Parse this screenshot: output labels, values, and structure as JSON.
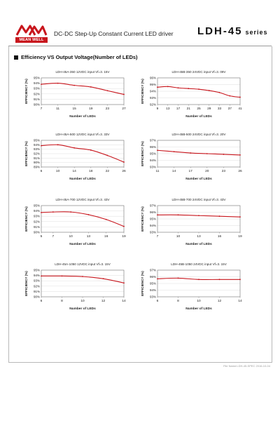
{
  "header": {
    "brand": "MEAN WELL",
    "subtitle": "DC-DC Step-Up Constant Current LED driver",
    "model": "LDH-45",
    "model_suffix": "series"
  },
  "section": {
    "title": "Efficiency VS Output Voltage(Number of LEDs)"
  },
  "footer": {
    "note": "File Name:LDH-45-SPEC   2016-10-04"
  },
  "colors": {
    "curve": "#c8161d",
    "plot_border": "#6e6e6e",
    "grid": "#d5d5d5",
    "text": "#222222"
  },
  "chart_data": [
    {
      "type": "line",
      "title": "LDH-45A-350  12VDC  input  Vf=3. 15V",
      "xlabel": "Number of LEDs",
      "ylabel": "EFFICIENCY (%)",
      "xticks": [
        7,
        11,
        15,
        19,
        23,
        27
      ],
      "yticks": [
        90,
        91,
        92,
        93,
        94,
        95
      ],
      "ylim": [
        90,
        95
      ],
      "x": [
        7,
        11,
        15,
        19,
        23,
        27
      ],
      "y": [
        93.8,
        94.0,
        93.6,
        93.3,
        92.6,
        91.9
      ]
    },
    {
      "type": "line",
      "title": "LDH-45B-350  24VDC  input  Vf=3. 09V",
      "xlabel": "Number of LEDs",
      "ylabel": "EFFICIENCY (%)",
      "xticks": [
        9,
        13,
        17,
        21,
        25,
        29,
        33,
        37,
        41
      ],
      "yticks": [
        92,
        93,
        94,
        95,
        96
      ],
      "ylim": [
        92,
        96
      ],
      "x": [
        9,
        13,
        17,
        21,
        25,
        29,
        33,
        37,
        41
      ],
      "y": [
        94.6,
        94.7,
        94.5,
        94.4,
        94.3,
        94.1,
        93.8,
        93.3,
        93.1
      ]
    },
    {
      "type": "line",
      "title": "LDH-45A-500 12VDC  input  Vf=3. 33V",
      "xlabel": "Number of LEDs",
      "ylabel": "EFFICIENCY (%)",
      "xticks": [
        6,
        10,
        14,
        18,
        22,
        26
      ],
      "yticks": [
        89,
        90,
        91,
        92,
        93,
        94,
        95
      ],
      "ylim": [
        89,
        95
      ],
      "x": [
        6,
        10,
        14,
        18,
        22,
        26
      ],
      "y": [
        93.8,
        94.0,
        93.3,
        92.8,
        91.6,
        90.1
      ]
    },
    {
      "type": "line",
      "title": "LDH-45B-500  24VDC  input  Vf=3. 20V",
      "xlabel": "Number of LEDs",
      "ylabel": "EFFICIENCY (%)",
      "xticks": [
        11,
        14,
        17,
        20,
        23,
        26
      ],
      "yticks": [
        93,
        94,
        95,
        96,
        97
      ],
      "ylim": [
        93,
        97
      ],
      "x": [
        11,
        14,
        17,
        20,
        23,
        26
      ],
      "y": [
        95.5,
        95.3,
        95.1,
        95.0,
        94.9,
        94.8
      ]
    },
    {
      "type": "line",
      "title": "LDH-45A-700 12VDC  input  Vf=3. 43V",
      "xlabel": "Number of LEDs",
      "ylabel": "EFFICIENCY (%)",
      "xticks": [
        5,
        7,
        10,
        13,
        16,
        19
      ],
      "yticks": [
        90,
        91,
        92,
        93,
        94,
        95
      ],
      "ylim": [
        90,
        95
      ],
      "x": [
        5,
        7,
        10,
        13,
        16,
        19
      ],
      "y": [
        93.7,
        93.8,
        93.8,
        93.3,
        92.4,
        91.1
      ]
    },
    {
      "type": "line",
      "title": "LDH-45B-700  24VDC  input  Vf=3. 43V",
      "xlabel": "Number of LEDs",
      "ylabel": "EFFICIENCY (%)",
      "xticks": [
        7,
        10,
        13,
        16,
        19
      ],
      "yticks": [
        93,
        94,
        95,
        96,
        97
      ],
      "ylim": [
        93,
        97
      ],
      "x": [
        7,
        10,
        13,
        16,
        19
      ],
      "y": [
        95.6,
        95.6,
        95.5,
        95.4,
        95.3
      ]
    },
    {
      "type": "line",
      "title": "LDH-45A-1050  12VDC  input  Vf=3. 15V",
      "xlabel": "Number of LEDs",
      "ylabel": "EFFICIENCY (%)",
      "xticks": [
        6,
        8,
        10,
        12,
        14
      ],
      "yticks": [
        90,
        91,
        92,
        93,
        94,
        95
      ],
      "ylim": [
        90,
        95
      ],
      "x": [
        6,
        8,
        10,
        12,
        14
      ],
      "y": [
        93.9,
        93.9,
        93.8,
        93.4,
        92.6
      ]
    },
    {
      "type": "line",
      "title": "LDH-45B-1050  24VDC  input  Vf=3. 15V",
      "xlabel": "Number of LEDs",
      "ylabel": "EFFICIENCY (%)",
      "xticks": [
        6,
        8,
        10,
        12,
        14
      ],
      "yticks": [
        93,
        94,
        95,
        96,
        97
      ],
      "ylim": [
        93,
        97
      ],
      "x": [
        6,
        8,
        10,
        12,
        14
      ],
      "y": [
        95.7,
        95.8,
        95.6,
        95.6,
        95.6
      ]
    }
  ]
}
